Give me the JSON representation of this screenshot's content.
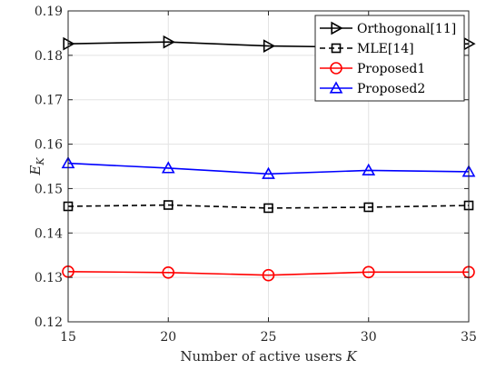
{
  "chart_data": {
    "type": "line",
    "xlabel": "Number of active users",
    "xlabel_var": "K",
    "ylabel_base": "E",
    "ylabel_sub": "K",
    "x": [
      15,
      20,
      25,
      30,
      35
    ],
    "xlim": [
      15,
      35
    ],
    "ylim": [
      0.12,
      0.19
    ],
    "xticks": [
      "15",
      "20",
      "25",
      "30",
      "35"
    ],
    "yticks": [
      "0.12",
      "0.13",
      "0.14",
      "0.15",
      "0.16",
      "0.17",
      "0.18",
      "0.19"
    ],
    "grid": true,
    "legend_position": "top-right",
    "series": [
      {
        "name": "Orthogonal[11]",
        "values": [
          0.1826,
          0.183,
          0.1821,
          0.1818,
          0.1826
        ],
        "color": "#000000",
        "marker": "triangle-right",
        "dash": "solid"
      },
      {
        "name": "MLE[14]",
        "values": [
          0.146,
          0.1463,
          0.1456,
          0.1458,
          0.1462
        ],
        "color": "#000000",
        "marker": "square",
        "dash": "dashed"
      },
      {
        "name": "Proposed1",
        "values": [
          0.1313,
          0.1311,
          0.1305,
          0.1312,
          0.1312
        ],
        "color": "#ff0000",
        "marker": "circle",
        "dash": "solid"
      },
      {
        "name": "Proposed2",
        "values": [
          0.1557,
          0.1546,
          0.1533,
          0.1541,
          0.1538
        ],
        "color": "#0000ff",
        "marker": "triangle-up",
        "dash": "solid"
      }
    ]
  }
}
